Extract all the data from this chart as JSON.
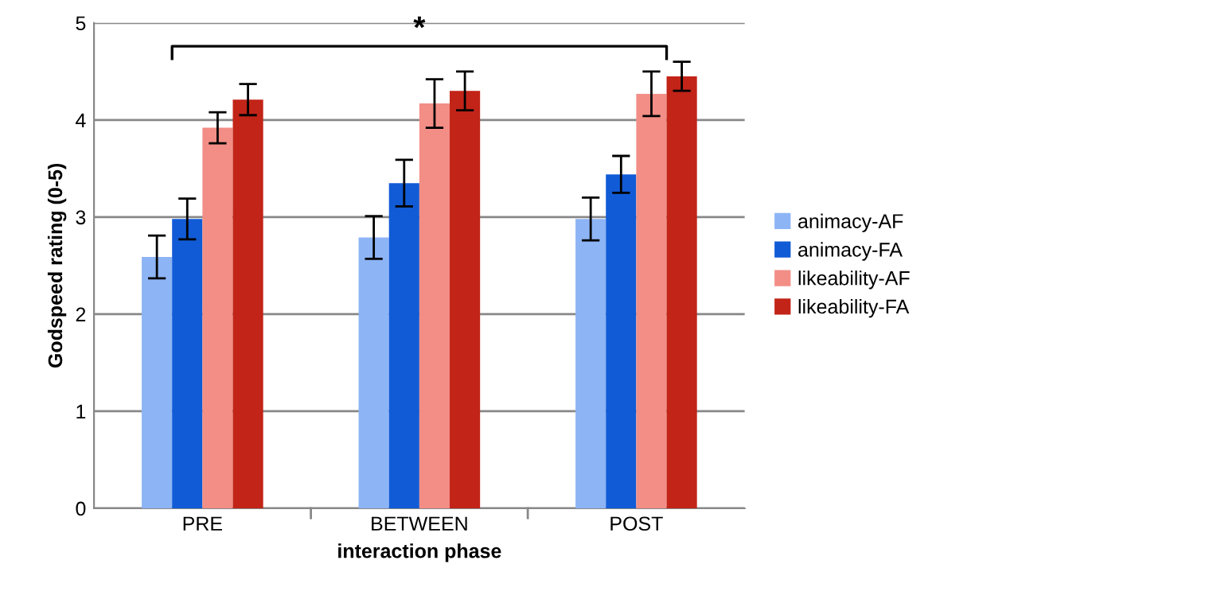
{
  "chart_data": {
    "type": "bar",
    "xlabel": "interaction phase",
    "ylabel": "Godspeed rating (0-5)",
    "categories": [
      "PRE",
      "BETWEEN",
      "POST"
    ],
    "series": [
      {
        "name": "animacy-AF",
        "color": "#8db4f5",
        "values": [
          2.59,
          2.79,
          2.98
        ],
        "errors": [
          0.22,
          0.22,
          0.22
        ]
      },
      {
        "name": "animacy-FA",
        "color": "#115bd6",
        "values": [
          2.98,
          3.35,
          3.44
        ],
        "errors": [
          0.21,
          0.24,
          0.19
        ]
      },
      {
        "name": "likeability-AF",
        "color": "#f28e86",
        "values": [
          3.92,
          4.17,
          4.27
        ],
        "errors": [
          0.16,
          0.25,
          0.23
        ]
      },
      {
        "name": "likeability-FA",
        "color": "#c22418",
        "values": [
          4.21,
          4.3,
          4.45
        ],
        "errors": [
          0.16,
          0.2,
          0.15
        ]
      }
    ],
    "annotations": [
      "*"
    ],
    "ylim": [
      0,
      5
    ],
    "yticks": [
      0,
      1,
      2,
      3,
      4,
      5
    ],
    "grid": "y",
    "legend": "right"
  }
}
